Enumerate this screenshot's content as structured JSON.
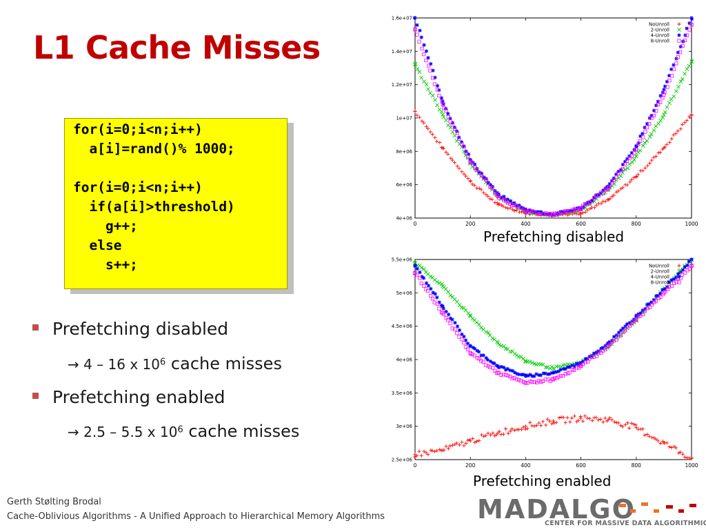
{
  "slide": {
    "title": "L1 Cache Misses",
    "code": "for(i=0;i<n;i++)\n  a[i]=rand()% 1000;\n\nfor(i=0;i<n;i++)\n  if(a[i]>threshold)\n    g++;\n  else\n    s++;",
    "bullets": [
      {
        "text": "Prefetching disabled",
        "detail_prefix": "→ 4 – 16 x 10",
        "detail_exp": "6",
        "detail_suffix": " cache misses"
      },
      {
        "text": "Prefetching enabled",
        "detail_prefix": "→ 2.5 – 5.5 x 10",
        "detail_exp": "6",
        "detail_suffix": " cache misses"
      }
    ],
    "footer_author": "Gerth Stølting Brodal",
    "footer_title": "Cache-Oblivious Algorithms - A Unified Approach to Hierarchical Memory Algorithms",
    "logo_text": "MADALGO",
    "logo_tagline": "CENTER FOR MASSIVE DATA ALGORITHMICS",
    "bullet_color": "#c0504d",
    "title_color": "#c00000"
  },
  "chart_data": [
    {
      "type": "scatter",
      "caption": "Prefetching disabled",
      "xlim": [
        0,
        1000
      ],
      "ylim": [
        4000000,
        16000000
      ],
      "xticks": [
        0,
        200,
        400,
        600,
        800,
        1000
      ],
      "yticks": [
        4000000,
        6000000,
        8000000,
        10000000,
        12000000,
        14000000,
        16000000
      ],
      "ytick_labels": [
        "4e+06",
        "6e+06",
        "8e+06",
        "1e+07",
        "1.2e+07",
        "1.4e+07",
        "1.6e+07"
      ],
      "legend_position": "top-right",
      "series": [
        {
          "name": "NoUnroll",
          "color": "#ff0000",
          "marker": "plus",
          "x": [
            0,
            100,
            200,
            300,
            400,
            500,
            600,
            700,
            800,
            900,
            1000
          ],
          "y": [
            10400000,
            8200000,
            6200000,
            4800000,
            4300000,
            4200000,
            4300000,
            5100000,
            6500000,
            8200000,
            10200000
          ]
        },
        {
          "name": "2-Unroll",
          "color": "#00cc00",
          "marker": "cross",
          "x": [
            0,
            100,
            200,
            300,
            400,
            500,
            600,
            700,
            800,
            900,
            1000
          ],
          "y": [
            13200000,
            10200000,
            7300000,
            5300000,
            4400000,
            4200000,
            4500000,
            5700000,
            7700000,
            10200000,
            13400000
          ]
        },
        {
          "name": "4-Unroll",
          "color": "#0000ff",
          "marker": "star",
          "x": [
            0,
            100,
            200,
            300,
            400,
            500,
            600,
            700,
            800,
            900,
            1000
          ],
          "y": [
            16000000,
            11000000,
            7500000,
            5400000,
            4500000,
            4200000,
            4600000,
            5900000,
            8300000,
            11700000,
            16000000
          ]
        },
        {
          "name": "8-Unroll",
          "color": "#ff00ff",
          "marker": "square",
          "x": [
            0,
            100,
            200,
            300,
            400,
            500,
            600,
            700,
            800,
            900,
            1000
          ],
          "y": [
            15300000,
            10800000,
            7400000,
            5300000,
            4400000,
            4200000,
            4600000,
            5800000,
            8100000,
            11400000,
            15600000
          ]
        }
      ]
    },
    {
      "type": "scatter",
      "caption": "Prefetching enabled",
      "xlim": [
        0,
        1000
      ],
      "ylim": [
        2500000,
        5500000
      ],
      "xticks": [
        0,
        200,
        400,
        600,
        800,
        1000
      ],
      "yticks": [
        2500000,
        3000000,
        3500000,
        4000000,
        4500000,
        5000000,
        5500000
      ],
      "ytick_labels": [
        "2.5e+06",
        "3e+06",
        "3.5e+06",
        "4e+06",
        "4.5e+06",
        "5e+06",
        "5.5e+06"
      ],
      "legend_position": "top-right",
      "series": [
        {
          "name": "NoUnroll",
          "color": "#ff0000",
          "marker": "plus",
          "x": [
            0,
            100,
            200,
            300,
            400,
            500,
            600,
            700,
            800,
            900,
            1000
          ],
          "y": [
            2580000,
            2640000,
            2780000,
            2900000,
            3000000,
            3080000,
            3120000,
            3100000,
            2980000,
            2750000,
            2520000
          ]
        },
        {
          "name": "2-Unroll",
          "color": "#00cc00",
          "marker": "cross",
          "x": [
            0,
            100,
            200,
            300,
            400,
            500,
            600,
            700,
            800,
            900,
            1000
          ],
          "y": [
            5450000,
            5100000,
            4650000,
            4250000,
            3980000,
            3870000,
            3950000,
            4200000,
            4600000,
            5050000,
            5500000
          ]
        },
        {
          "name": "4-Unroll",
          "color": "#0000ff",
          "marker": "star",
          "x": [
            0,
            100,
            200,
            300,
            400,
            500,
            600,
            700,
            800,
            900,
            1000
          ],
          "y": [
            5400000,
            4800000,
            4200000,
            3900000,
            3750000,
            3800000,
            3950000,
            4250000,
            4650000,
            5050000,
            5500000
          ]
        },
        {
          "name": "8-Unroll",
          "color": "#ff00ff",
          "marker": "square",
          "x": [
            0,
            100,
            200,
            300,
            400,
            500,
            600,
            700,
            800,
            900,
            1000
          ],
          "y": [
            5300000,
            4700000,
            4100000,
            3800000,
            3650000,
            3700000,
            3900000,
            4200000,
            4600000,
            5000000,
            5400000
          ]
        }
      ]
    }
  ]
}
